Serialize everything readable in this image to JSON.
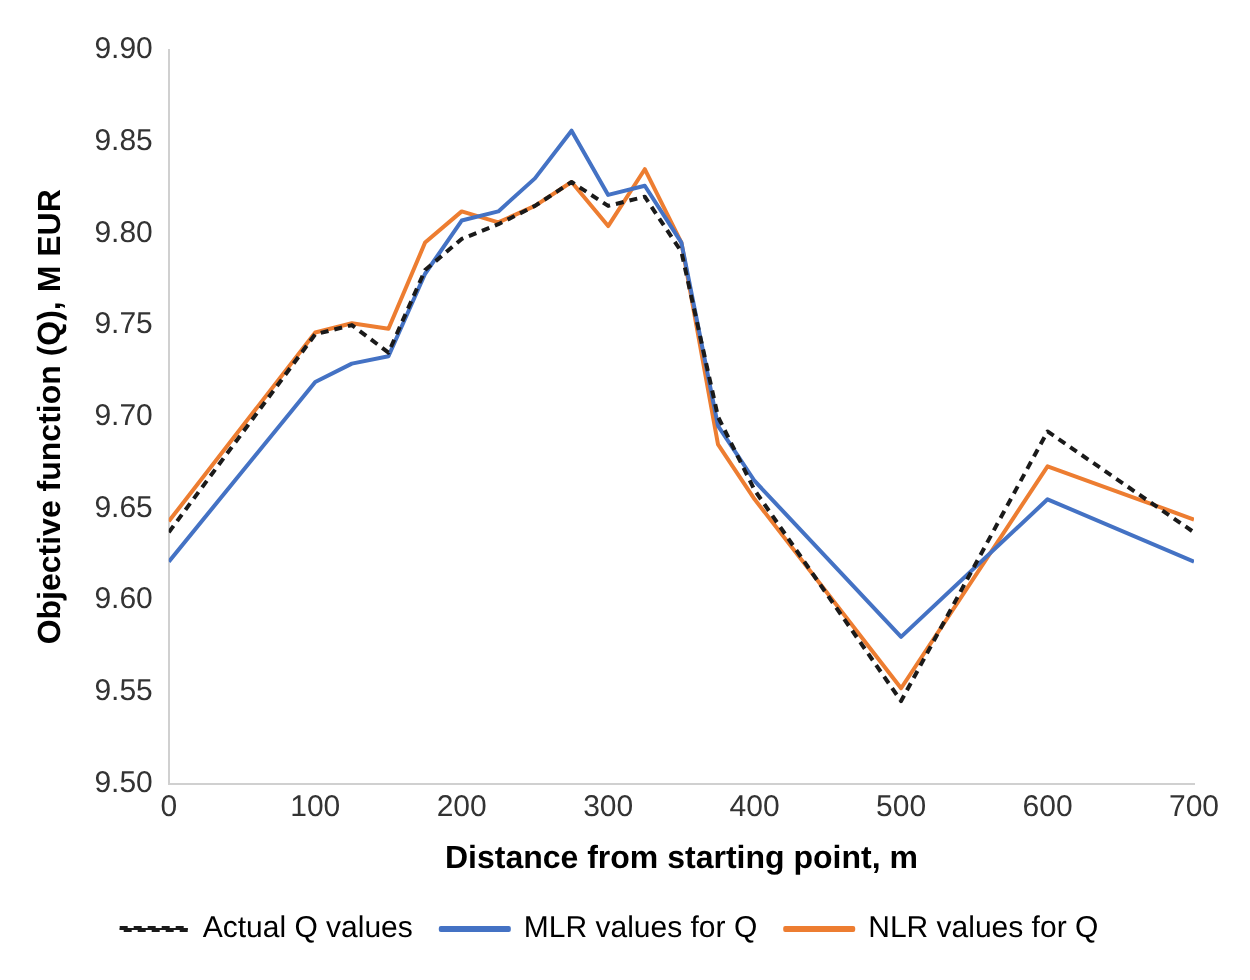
{
  "chart_data": {
    "type": "line",
    "xlabel": "Distance from starting point, m",
    "ylabel": "Objective function (Q), M EUR",
    "x": [
      0,
      100,
      125,
      150,
      175,
      200,
      225,
      250,
      275,
      300,
      325,
      350,
      375,
      400,
      500,
      600,
      700
    ],
    "series": [
      {
        "name": "Actual Q values",
        "color": "#1a1a1a",
        "line_style": "dashed",
        "values": [
          9.637,
          9.745,
          9.75,
          9.735,
          9.78,
          9.797,
          9.805,
          9.815,
          9.828,
          9.815,
          9.82,
          9.79,
          9.7,
          9.66,
          9.545,
          9.692,
          9.637
        ]
      },
      {
        "name": "MLR values for Q",
        "color": "#4472c4",
        "line_style": "solid",
        "values": [
          9.621,
          9.719,
          9.729,
          9.733,
          9.778,
          9.807,
          9.812,
          9.83,
          9.856,
          9.821,
          9.826,
          9.795,
          9.695,
          9.665,
          9.58,
          9.655,
          9.621
        ]
      },
      {
        "name": "NLR values for Q",
        "color": "#ed7d31",
        "line_style": "solid",
        "values": [
          9.643,
          9.746,
          9.751,
          9.748,
          9.795,
          9.812,
          9.806,
          9.815,
          9.828,
          9.804,
          9.835,
          9.795,
          9.685,
          9.655,
          9.552,
          9.673,
          9.644
        ]
      }
    ],
    "xlim": [
      0,
      700
    ],
    "xticks": [
      0,
      100,
      200,
      300,
      400,
      500,
      600,
      700
    ],
    "ylim": [
      9.5,
      9.9
    ],
    "yticks": [
      {
        "value": 9.5,
        "label": "9.50"
      },
      {
        "value": 9.55,
        "label": "9.55"
      },
      {
        "value": 9.6,
        "label": "9.60"
      },
      {
        "value": 9.65,
        "label": "9.65"
      },
      {
        "value": 9.7,
        "label": "9.70"
      },
      {
        "value": 9.75,
        "label": "9.75"
      },
      {
        "value": 9.8,
        "label": "9.80"
      },
      {
        "value": 9.85,
        "label": "9.85"
      },
      {
        "value": 9.9,
        "label": "9.90"
      }
    ],
    "grid": false,
    "legend": "bottom",
    "marker": "none"
  }
}
